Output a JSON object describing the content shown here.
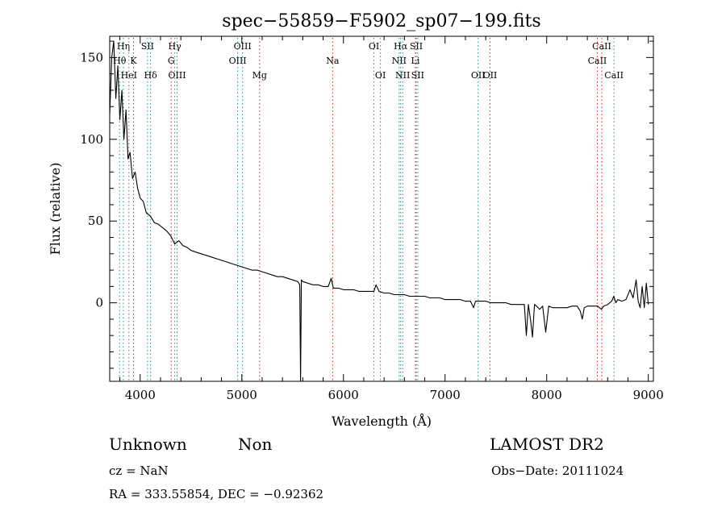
{
  "chart_data": {
    "type": "line",
    "title": "spec−55859−F5902_sp07−199.fits",
    "xlabel": "Wavelength (Å)",
    "ylabel": "Flux (relative)",
    "xlim": [
      3700,
      9050
    ],
    "ylim": [
      -48,
      163
    ],
    "x_ticks": [
      4000,
      5000,
      6000,
      7000,
      8000,
      9000
    ],
    "y_ticks": [
      0,
      50,
      100,
      150
    ],
    "grid": false,
    "series": [
      {
        "x": [
          3700,
          3720,
          3740,
          3760,
          3780,
          3800,
          3820,
          3840,
          3860,
          3880,
          3900,
          3925,
          3950,
          3975,
          4000,
          4030,
          4060,
          4100,
          4140,
          4180,
          4220,
          4260,
          4300,
          4340,
          4380,
          4420,
          4460,
          4500,
          4550,
          4600,
          4650,
          4700,
          4750,
          4800,
          4850,
          4900,
          4950,
          5000,
          5050,
          5100,
          5150,
          5200,
          5250,
          5300,
          5350,
          5400,
          5450,
          5500,
          5550,
          5570,
          5578,
          5586,
          5600,
          5650,
          5700,
          5750,
          5800,
          5850,
          5880,
          5900,
          5950,
          6000,
          6050,
          6100,
          6150,
          6200,
          6250,
          6300,
          6320,
          6350,
          6400,
          6450,
          6500,
          6550,
          6600,
          6650,
          6700,
          6750,
          6800,
          6850,
          6900,
          6950,
          7000,
          7050,
          7100,
          7150,
          7200,
          7250,
          7280,
          7300,
          7350,
          7400,
          7450,
          7500,
          7550,
          7600,
          7650,
          7700,
          7750,
          7780,
          7800,
          7820,
          7840,
          7860,
          7880,
          7900,
          7930,
          7960,
          7990,
          8020,
          8060,
          8100,
          8150,
          8200,
          8250,
          8300,
          8330,
          8350,
          8370,
          8400,
          8450,
          8500,
          8520,
          8540,
          8560,
          8600,
          8640,
          8660,
          8680,
          8700,
          8740,
          8780,
          8820,
          8850,
          8880,
          8900,
          8920,
          8940,
          8960,
          8980,
          9000
        ],
        "values": [
          115,
          150,
          160,
          125,
          145,
          112,
          130,
          100,
          118,
          88,
          92,
          76,
          80,
          70,
          64,
          62,
          55,
          53,
          49,
          48,
          46,
          44,
          41,
          36,
          38,
          35,
          34,
          32,
          31,
          30,
          29,
          28,
          27,
          26,
          25,
          24,
          23,
          22,
          21,
          20,
          20,
          19,
          18,
          17,
          16,
          16,
          15,
          14,
          13,
          11,
          -48,
          14,
          13,
          12,
          11,
          11,
          10,
          10,
          15,
          9,
          9,
          8,
          8,
          8,
          7,
          7,
          7,
          7,
          11,
          7,
          6,
          6,
          5,
          5,
          5,
          4,
          4,
          4,
          4,
          3,
          3,
          3,
          2,
          2,
          2,
          2,
          1,
          1,
          -3,
          1,
          1,
          1,
          0,
          0,
          0,
          0,
          -1,
          -1,
          -1,
          -1,
          -20,
          -1,
          -10,
          -21,
          -1,
          -2,
          -4,
          -2,
          -18,
          -2,
          -3,
          -3,
          -3,
          -3,
          -2,
          -2,
          -5,
          -10,
          -3,
          -2,
          -2,
          -2,
          -3,
          -4,
          -2,
          -1,
          1,
          4,
          0,
          2,
          1,
          2,
          8,
          3,
          14,
          1,
          -3,
          10,
          -3,
          12,
          -1
        ]
      }
    ],
    "emission_lines": [
      {
        "name": "Hη",
        "wl": 3835,
        "row": 0
      },
      {
        "name": "Hθ",
        "wl": 3797,
        "row": 1
      },
      {
        "name": "HeI",
        "wl": 3889,
        "row": 2
      },
      {
        "name": "SII",
        "wl": 4072,
        "row": 0
      },
      {
        "name": "Hδ",
        "wl": 4102,
        "row": 2
      },
      {
        "name": "Hγ",
        "wl": 4340,
        "row": 0
      },
      {
        "name": "OIII",
        "wl": 4363,
        "row": 2
      },
      {
        "name": "OIII",
        "wl": 4959,
        "row": 1
      },
      {
        "name": "OIII",
        "wl": 5007,
        "row": 0
      },
      {
        "name": "OI",
        "wl": 6300,
        "row": 0
      },
      {
        "name": "OI",
        "wl": 6364,
        "row": 2
      },
      {
        "name": "NII",
        "wl": 6548,
        "row": 1
      },
      {
        "name": "Hα",
        "wl": 6563,
        "row": 0
      },
      {
        "name": "NII",
        "wl": 6583,
        "row": 2
      },
      {
        "name": "SII",
        "wl": 6716,
        "row": 0
      },
      {
        "name": "SII",
        "wl": 6731,
        "row": 2
      },
      {
        "name": "OII",
        "wl": 7325,
        "row": 2
      },
      {
        "name": "CaII",
        "wl": 8662,
        "row": 2
      }
    ],
    "absorption_lines": [
      {
        "name": "K",
        "wl": 3934,
        "row": 1
      },
      {
        "name": "G",
        "wl": 4305,
        "row": 1
      },
      {
        "name": "Mg",
        "wl": 5175,
        "row": 2
      },
      {
        "name": "Na",
        "wl": 5894,
        "row": 1
      },
      {
        "name": "Li",
        "wl": 6708,
        "row": 1
      },
      {
        "name": "OII",
        "wl": 7442,
        "row": 2
      },
      {
        "name": "CaII",
        "wl": 8498,
        "row": 1
      },
      {
        "name": "CaII",
        "wl": 8542,
        "row": 0
      }
    ]
  },
  "info": {
    "class_label": "Unknown",
    "subclass_label": "Non",
    "cz_label": "cz = NaN",
    "radec_label": "RA = 333.55854, DEC =  −0.92362",
    "survey_label": "LAMOST DR2",
    "obsdate_label": "Obs−Date: 20111024"
  }
}
